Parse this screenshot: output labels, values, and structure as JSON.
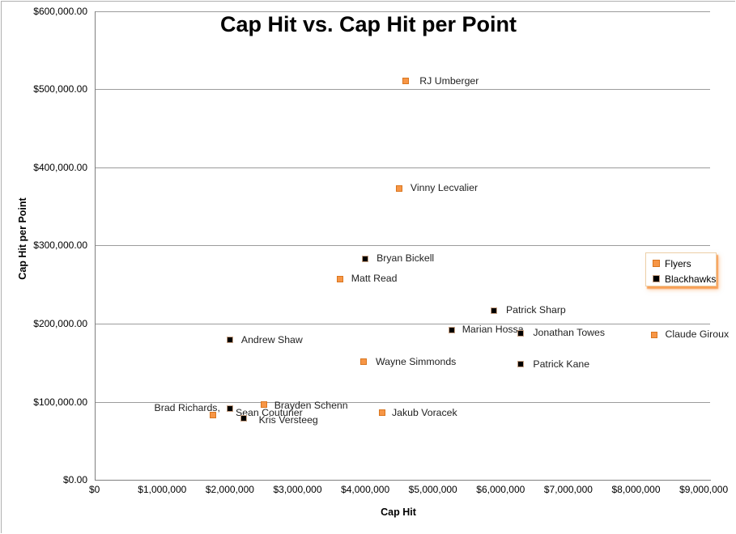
{
  "chart_data": {
    "type": "scatter",
    "title": "Cap Hit vs. Cap Hit per Point",
    "xlabel": "Cap Hit",
    "ylabel": "Cap Hit per Point",
    "xlim": [
      0,
      9000000
    ],
    "ylim": [
      0,
      600000
    ],
    "grid": "horizontal-only",
    "x_ticks": [
      {
        "value": 0,
        "label": "$0"
      },
      {
        "value": 1000000,
        "label": "$1,000,000"
      },
      {
        "value": 2000000,
        "label": "$2,000,000"
      },
      {
        "value": 3000000,
        "label": "$3,000,000"
      },
      {
        "value": 4000000,
        "label": "$4,000,000"
      },
      {
        "value": 5000000,
        "label": "$5,000,000"
      },
      {
        "value": 6000000,
        "label": "$6,000,000"
      },
      {
        "value": 7000000,
        "label": "$7,000,000"
      },
      {
        "value": 8000000,
        "label": "$8,000,000"
      },
      {
        "value": 9000000,
        "label": "$9,000,000"
      }
    ],
    "y_ticks": [
      {
        "value": 0,
        "label": "$0.00"
      },
      {
        "value": 100000,
        "label": "$100,000.00"
      },
      {
        "value": 200000,
        "label": "$200,000.00"
      },
      {
        "value": 300000,
        "label": "$300,000.00"
      },
      {
        "value": 400000,
        "label": "$400,000.00"
      },
      {
        "value": 500000,
        "label": "$500,000.00"
      },
      {
        "value": 600000,
        "label": "$600,000.00"
      }
    ],
    "legend": {
      "position": "middle-right",
      "entries": [
        {
          "name": "Flyers",
          "color": "#F79646",
          "border": "#D9761F"
        },
        {
          "name": "Blackhawks",
          "color": "#000000",
          "border": "#C9A386"
        }
      ]
    },
    "series": [
      {
        "name": "Flyers",
        "marker": "square",
        "color": "#F79646",
        "border": "#D9761F",
        "points": [
          {
            "label": "RJ Umberger",
            "x": 4600000,
            "y": 510000,
            "label_dx": 17
          },
          {
            "label": "Vinny Lecvalier",
            "x": 4500000,
            "y": 373000,
            "label_dx": 14
          },
          {
            "label": "Matt Read",
            "x": 3625000,
            "y": 257000,
            "label_dx": 14
          },
          {
            "label": "Claude Giroux",
            "x": 8275000,
            "y": 186000,
            "label_dx": 13
          },
          {
            "label": "Wayne Simmonds",
            "x": 3975000,
            "y": 151000,
            "label_dx": 15
          },
          {
            "label": "Brayden Schenn",
            "x": 2500000,
            "y": 97000,
            "label_dx": 13,
            "label_dy": 2
          },
          {
            "label": "Jakub Voracek",
            "x": 4250000,
            "y": 86000,
            "label_dx": 12
          },
          {
            "label": "Sean Couturier",
            "x": 1750000,
            "y": 83000,
            "label_dx": 28,
            "label_dy": -3
          }
        ]
      },
      {
        "name": "Blackhawks",
        "marker": "square",
        "color": "#000000",
        "border": "#C9A386",
        "points": [
          {
            "label": "Bryan Bickell",
            "x": 4000000,
            "y": 283000,
            "label_dx": 14
          },
          {
            "label": "Patrick Sharp",
            "x": 5900000,
            "y": 217000,
            "label_dx": 15
          },
          {
            "label": "Marian Hossa",
            "x": 5275000,
            "y": 192000,
            "label_dx": 13
          },
          {
            "label": "Jonathan Towes",
            "x": 6300000,
            "y": 188000,
            "label_dx": 15
          },
          {
            "label": "Andrew Shaw",
            "x": 2000000,
            "y": 179000,
            "label_dx": 14
          },
          {
            "label": "Patrick Kane",
            "x": 6300000,
            "y": 148000,
            "label_dx": 15
          },
          {
            "label": "Brad Richards,",
            "x": 2000000,
            "y": 91000,
            "label_side": "left",
            "label_dx": -12,
            "label_dy": -1
          },
          {
            "label": "Kris Versteeg",
            "x": 2200000,
            "y": 79000,
            "label_dx": 19,
            "label_dy": 3
          }
        ]
      }
    ],
    "colors": {
      "gridline": "#9c9c9c",
      "axis": "#7f7f7f",
      "data_label_text": "#1f1f1f",
      "background": "#ffffff"
    }
  }
}
